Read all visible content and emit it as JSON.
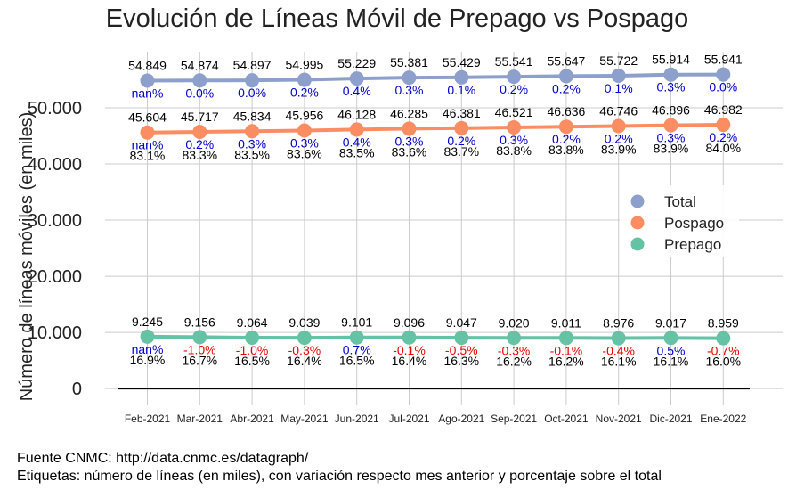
{
  "chart_data": {
    "type": "line",
    "title": "Evolución de Líneas Móvil de Prepago vs Pospago",
    "ylabel": "Número de líneas móviles (en miles)",
    "xlabel": "",
    "ylim": [
      -3000,
      60000
    ],
    "yticks": [
      0,
      10000,
      20000,
      30000,
      40000,
      50000
    ],
    "ytick_labels": [
      "0",
      "10.000",
      "20.000",
      "30.000",
      "40.000",
      "50.000"
    ],
    "categories": [
      "Feb-2021",
      "Mar-2021",
      "Abr-2021",
      "May-2021",
      "Jun-2021",
      "Jul-2021",
      "Ago-2021",
      "Sep-2021",
      "Oct-2021",
      "Nov-2021",
      "Dic-2021",
      "Ene-2022"
    ],
    "series": [
      {
        "name": "Total",
        "color": "#8da0cb",
        "values": [
          54849,
          54874,
          54897,
          54995,
          55229,
          55381,
          55429,
          55541,
          55647,
          55722,
          55914,
          55941
        ],
        "value_labels": [
          "54.849",
          "54.874",
          "54.897",
          "54.995",
          "55.229",
          "55.381",
          "55.429",
          "55.541",
          "55.647",
          "55.722",
          "55.914",
          "55.941"
        ],
        "change_labels": [
          "nan%",
          "0.0%",
          "0.0%",
          "0.2%",
          "0.4%",
          "0.3%",
          "0.1%",
          "0.2%",
          "0.2%",
          "0.1%",
          "0.3%",
          "0.0%"
        ],
        "share_labels": []
      },
      {
        "name": "Pospago",
        "color": "#fc8d62",
        "values": [
          45604,
          45717,
          45834,
          45956,
          46128,
          46285,
          46381,
          46521,
          46636,
          46746,
          46896,
          46982
        ],
        "value_labels": [
          "45.604",
          "45.717",
          "45.834",
          "45.956",
          "46.128",
          "46.285",
          "46.381",
          "46.521",
          "46.636",
          "46.746",
          "46.896",
          "46.982"
        ],
        "change_labels": [
          "nan%",
          "0.2%",
          "0.3%",
          "0.3%",
          "0.4%",
          "0.3%",
          "0.2%",
          "0.3%",
          "0.2%",
          "0.2%",
          "0.3%",
          "0.2%"
        ],
        "share_labels": [
          "83.1%",
          "83.3%",
          "83.5%",
          "83.6%",
          "83.5%",
          "83.6%",
          "83.7%",
          "83.8%",
          "83.8%",
          "83.9%",
          "83.9%",
          "84.0%"
        ]
      },
      {
        "name": "Prepago",
        "color": "#66c2a5",
        "values": [
          9245,
          9156,
          9064,
          9039,
          9101,
          9096,
          9047,
          9020,
          9011,
          8976,
          9017,
          8959
        ],
        "value_labels": [
          "9.245",
          "9.156",
          "9.064",
          "9.039",
          "9.101",
          "9.096",
          "9.047",
          "9.020",
          "9.011",
          "8.976",
          "9.017",
          "8.959"
        ],
        "change_labels": [
          "nan%",
          "-1.0%",
          "-1.0%",
          "-0.3%",
          "0.7%",
          "-0.1%",
          "-0.5%",
          "-0.3%",
          "-0.1%",
          "-0.4%",
          "0.5%",
          "-0.7%"
        ],
        "share_labels": [
          "16.9%",
          "16.7%",
          "16.5%",
          "16.4%",
          "16.5%",
          "16.4%",
          "16.3%",
          "16.2%",
          "16.2%",
          "16.1%",
          "16.1%",
          "16.0%"
        ]
      }
    ],
    "legend": "right",
    "grid": true,
    "colors": {
      "positive_change": "#0000cc",
      "negative_change": "#ee0000"
    }
  },
  "footer": {
    "line1": "Fuente CNMC: http://data.cnmc.es/datagraph/",
    "line2": "Etiquetas: número de líneas (en miles), con variación respecto mes anterior y porcentaje sobre el total"
  }
}
